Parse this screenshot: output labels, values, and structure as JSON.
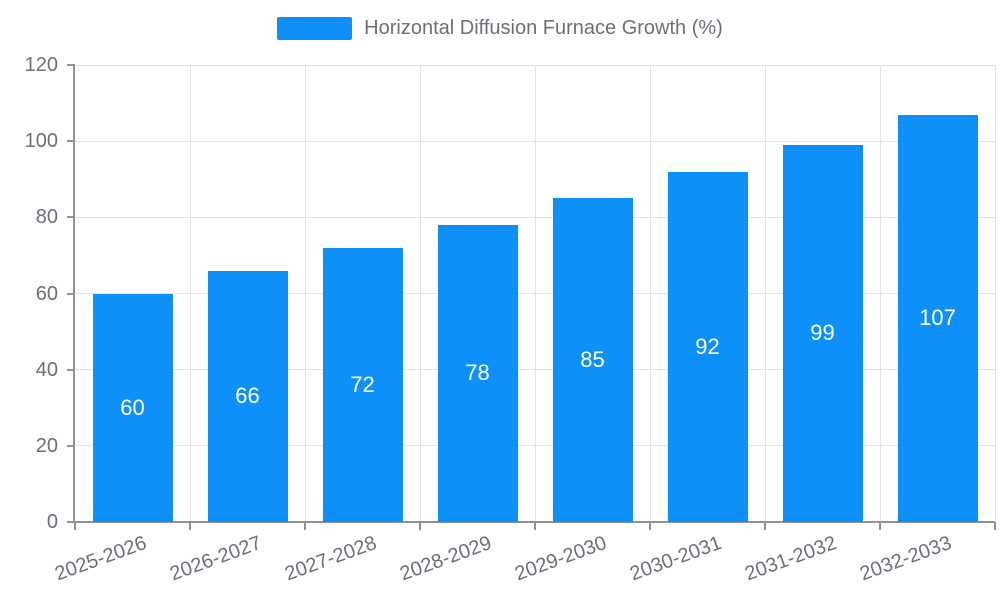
{
  "chart_data": {
    "type": "bar",
    "title": "Horizontal Diffusion Furnace Growth (%)",
    "legend": {
      "label": "Horizontal Diffusion Furnace Growth (%)",
      "position": "top-center"
    },
    "categories": [
      "2025-2026",
      "2026-2027",
      "2027-2028",
      "2028-2029",
      "2029-2030",
      "2030-2031",
      "2031-2032",
      "2032-2033"
    ],
    "values": [
      60,
      66,
      72,
      78,
      85,
      92,
      99,
      107
    ],
    "value_labels": [
      "60",
      "66",
      "72",
      "78",
      "85",
      "92",
      "99",
      "107"
    ],
    "value_label_placement": "inside-middle",
    "xlabel": "",
    "ylabel": "",
    "ylim": [
      0,
      120
    ],
    "yticks": [
      0,
      20,
      40,
      60,
      80,
      100,
      120
    ],
    "ytick_labels": [
      "0",
      "20",
      "40",
      "60",
      "80",
      "100",
      "120"
    ],
    "grid": true,
    "grid_vertical_at_category_boundaries": true,
    "xtick_label_rotation_deg": -20,
    "colors": {
      "bar": "#0d90fa",
      "axis_line": "#8f9399",
      "grid_line": "#e4e4e7",
      "tick_text": "#6e7079",
      "value_label_text": "#ffffff",
      "background": "#ffffff"
    }
  }
}
